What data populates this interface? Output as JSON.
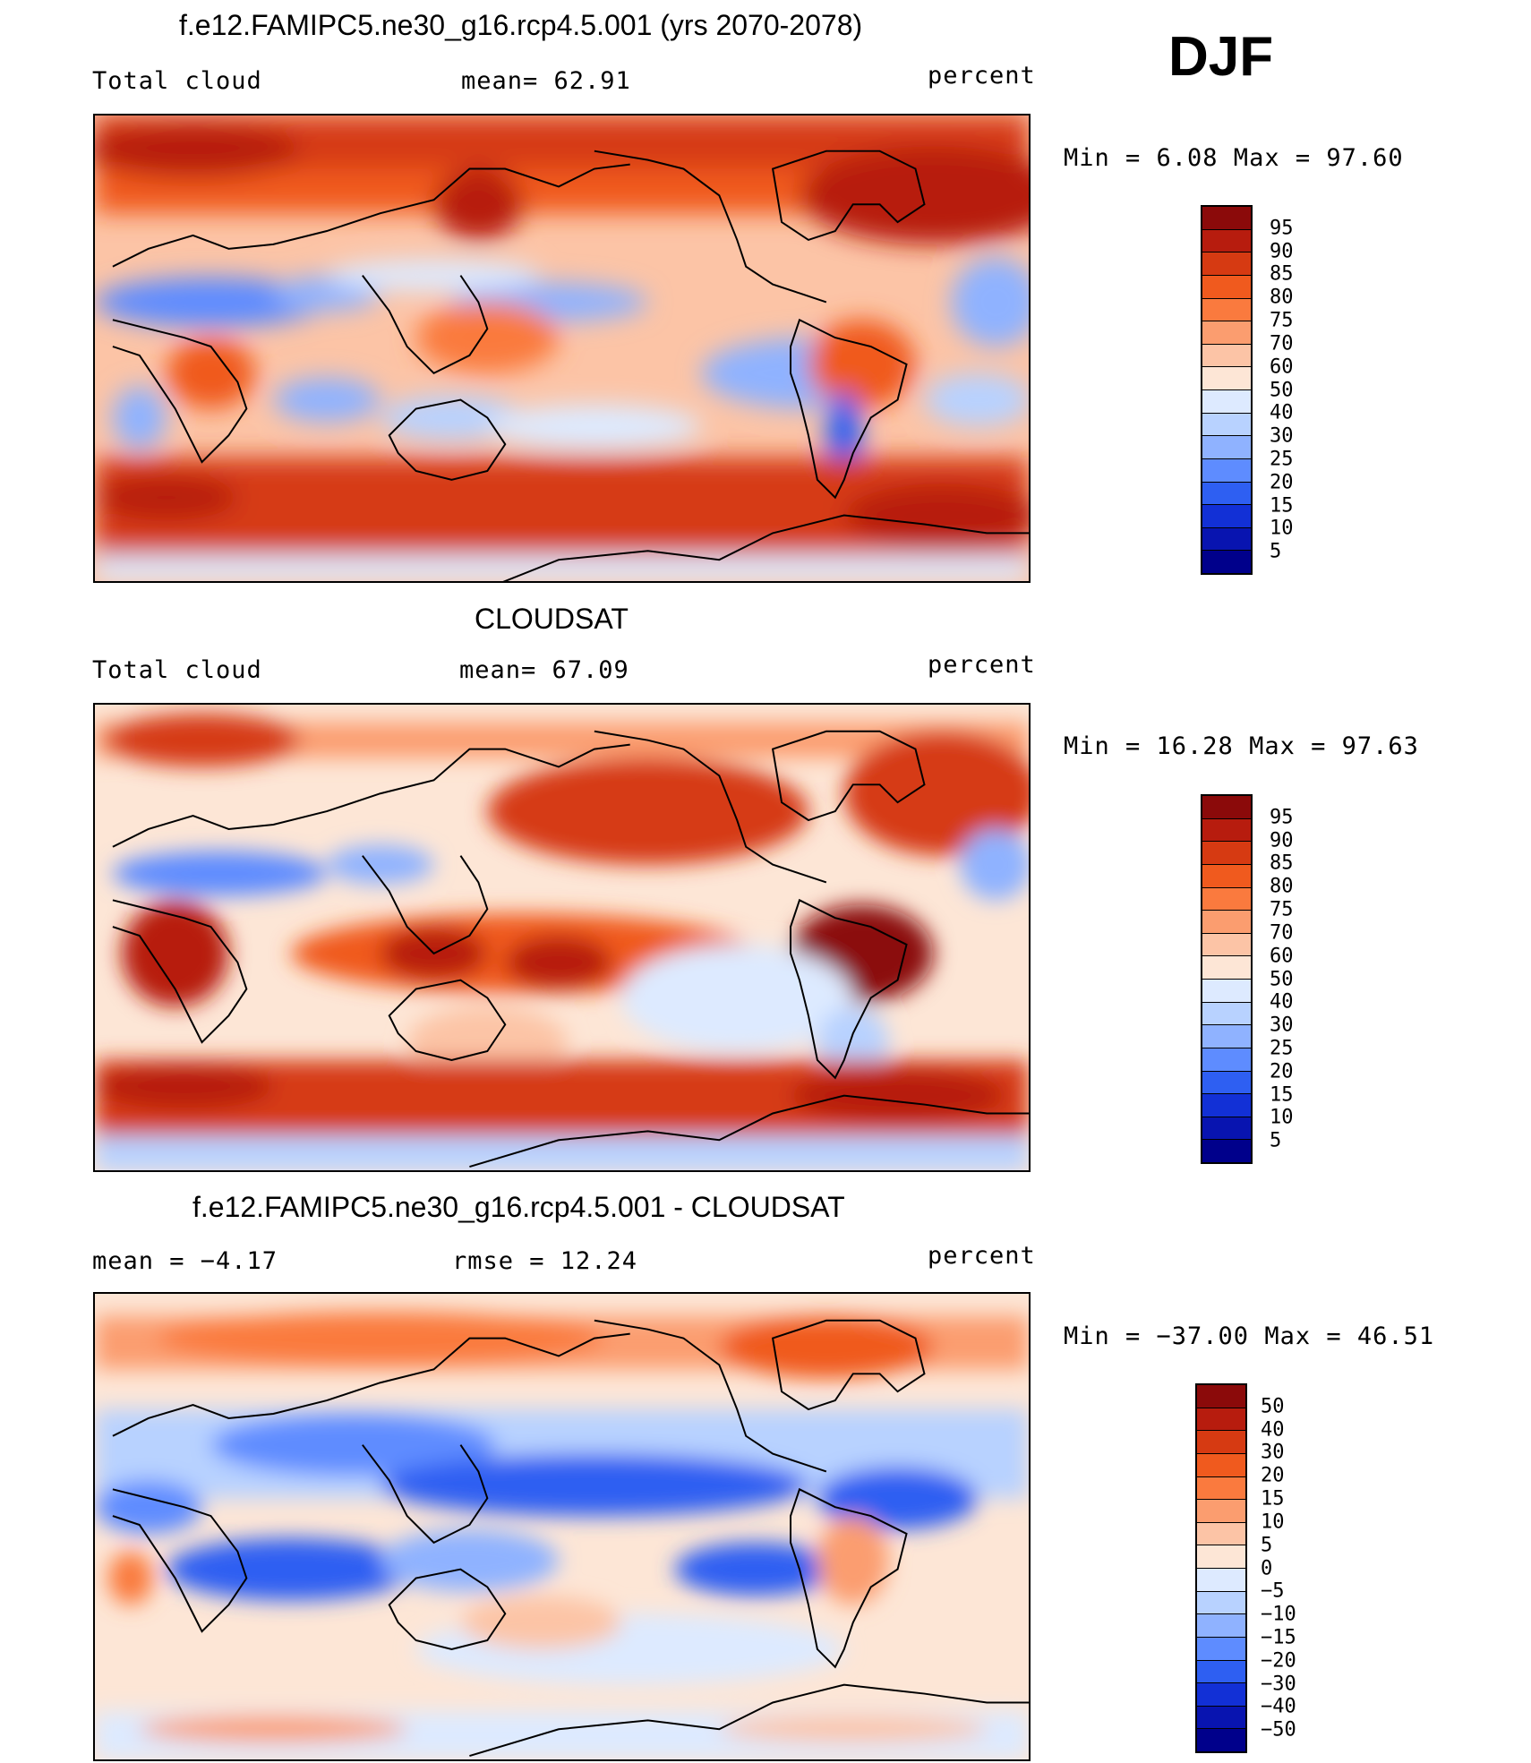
{
  "season": "DJF",
  "panels": [
    {
      "title": "f.e12.FAMIPC5.ne30_g16.rcp4.5.001 (yrs 2070-2078)",
      "left_label": "Total cloud",
      "center_label": "mean=   62.91",
      "right_label": "percent",
      "minmax": "Min =    6.08 Max =   97.60",
      "colorbar_ticks": [
        "95",
        "90",
        "85",
        "80",
        "75",
        "70",
        "60",
        "50",
        "40",
        "30",
        "25",
        "20",
        "15",
        "10",
        "5"
      ],
      "colorbar_colors": [
        "#8b0a0a",
        "#b71c0e",
        "#d63a12",
        "#f05a1e",
        "#fa7a3e",
        "#fb9d6f",
        "#fcc4a6",
        "#fde6d6",
        "#ddeaff",
        "#b8d2ff",
        "#8fb2ff",
        "#5e8cff",
        "#2e5ff2",
        "#1230d6",
        "#0814b0",
        "#00008b"
      ]
    },
    {
      "title": "CLOUDSAT",
      "left_label": "Total cloud",
      "center_label": "mean=   67.09",
      "right_label": "percent",
      "minmax": "Min =  16.28 Max =   97.63",
      "colorbar_ticks": [
        "95",
        "90",
        "85",
        "80",
        "75",
        "70",
        "60",
        "50",
        "40",
        "30",
        "25",
        "20",
        "15",
        "10",
        "5"
      ],
      "colorbar_colors": [
        "#8b0a0a",
        "#b71c0e",
        "#d63a12",
        "#f05a1e",
        "#fa7a3e",
        "#fb9d6f",
        "#fcc4a6",
        "#fde6d6",
        "#ddeaff",
        "#b8d2ff",
        "#8fb2ff",
        "#5e8cff",
        "#2e5ff2",
        "#1230d6",
        "#0814b0",
        "#00008b"
      ]
    },
    {
      "title": "f.e12.FAMIPC5.ne30_g16.rcp4.5.001 - CLOUDSAT",
      "left_label": "mean =   −4.17",
      "center_label": "rmse =   12.24",
      "right_label": "percent",
      "minmax": "Min = −37.00 Max =   46.51",
      "colorbar_ticks": [
        "50",
        "40",
        "30",
        "20",
        "15",
        "10",
        "5",
        "0",
        "−5",
        "−10",
        "−15",
        "−20",
        "−30",
        "−40",
        "−50"
      ],
      "colorbar_colors": [
        "#8b0a0a",
        "#b71c0e",
        "#d63a12",
        "#f05a1e",
        "#fa7a3e",
        "#fb9d6f",
        "#fcc4a6",
        "#fde6d6",
        "#ddeaff",
        "#b8d2ff",
        "#8fb2ff",
        "#5e8cff",
        "#2e5ff2",
        "#1230d6",
        "#0814b0",
        "#00008b"
      ]
    }
  ]
}
